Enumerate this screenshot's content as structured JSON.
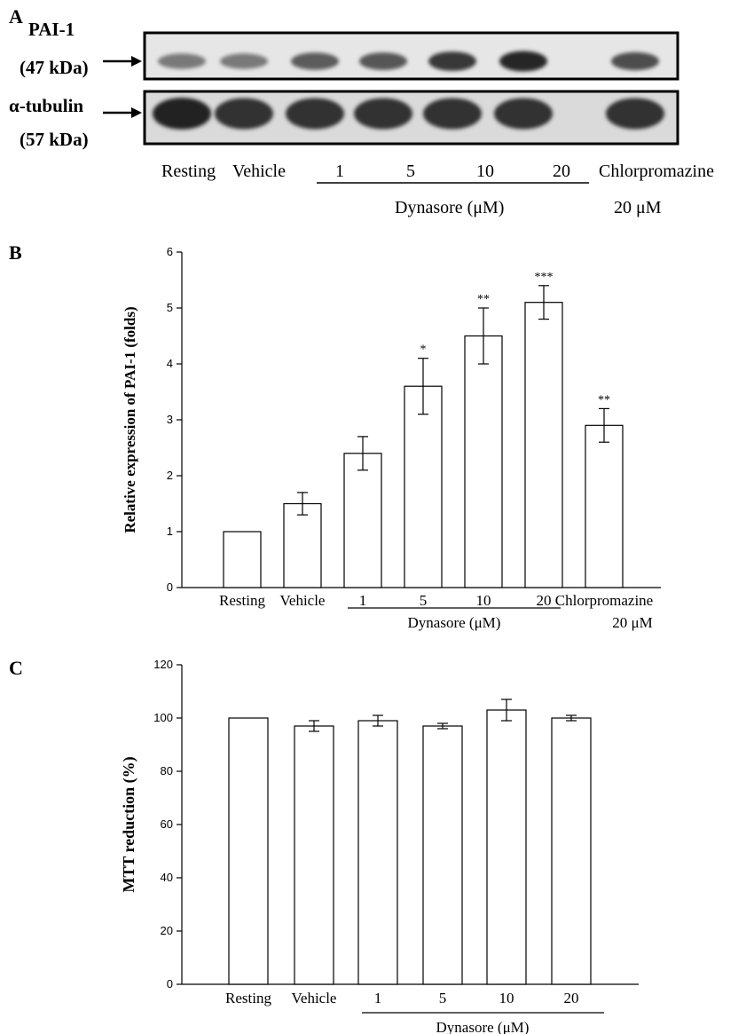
{
  "panels": {
    "a": {
      "letter": "A",
      "blot_rows": [
        {
          "protein": "PAI-1",
          "weight": "(47 kDa)",
          "band_intensity": [
            0.45,
            0.45,
            0.62,
            0.65,
            0.82,
            0.92,
            0.7
          ]
        },
        {
          "protein": "α-tubulin",
          "weight": "(57 kDa)",
          "band_intensity": [
            0.95,
            0.85,
            0.85,
            0.85,
            0.85,
            0.85,
            0.85
          ]
        }
      ],
      "lane_labels": [
        "Resting",
        "Vehicle",
        "1",
        "5",
        "10",
        "20",
        "Chlorpromazine"
      ],
      "group_label": "Dynasore (μM)",
      "chlorpromazine_dose": "20 μM"
    },
    "b": {
      "letter": "B"
    },
    "c": {
      "letter": "C"
    }
  },
  "chart_data": [
    {
      "type": "bar",
      "panel": "B",
      "categories": [
        "Resting",
        "Vehicle",
        "1",
        "5",
        "10",
        "20",
        "Chlorpromazine"
      ],
      "values": [
        1.0,
        1.5,
        2.4,
        3.6,
        4.5,
        5.1,
        2.9
      ],
      "errors": [
        0,
        0.2,
        0.3,
        0.5,
        0.5,
        0.3,
        0.3
      ],
      "significance": [
        "",
        "",
        "",
        "*",
        "**",
        "***",
        "**"
      ],
      "ylabel": "Relative expression of PAI-1 (folds)",
      "ylim": [
        0,
        6
      ],
      "yticks": [
        "0",
        "1",
        "2",
        "3",
        "4",
        "5",
        "6"
      ],
      "group_label": "Dynasore (μM)",
      "group_categories": [
        "1",
        "5",
        "10",
        "20"
      ],
      "extra_label": "20 μM",
      "grid": false
    },
    {
      "type": "bar",
      "panel": "C",
      "categories": [
        "Resting",
        "Vehicle",
        "1",
        "5",
        "10",
        "20"
      ],
      "values": [
        100,
        97,
        99,
        97,
        103,
        100
      ],
      "errors": [
        0,
        2,
        2,
        1,
        4,
        1
      ],
      "ylabel": "MTT reduction (%)",
      "ylim": [
        0,
        120
      ],
      "yticks": [
        "0",
        "20",
        "40",
        "60",
        "80",
        "100",
        "120"
      ],
      "group_label": "Dynasore (μM)",
      "group_categories": [
        "1",
        "5",
        "10",
        "20"
      ],
      "grid": false
    }
  ]
}
